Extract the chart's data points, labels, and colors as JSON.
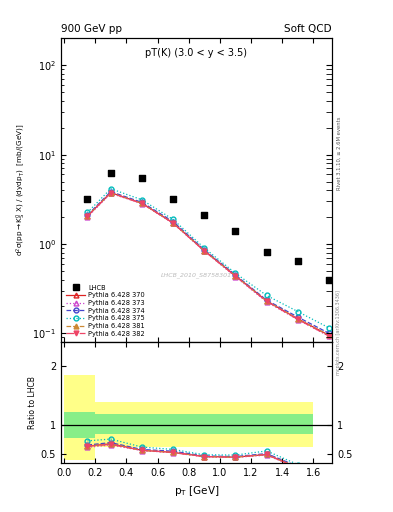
{
  "title_left": "900 GeV pp",
  "title_right": "Soft QCD",
  "panel_title": "pT(K) (3.0 < y < 3.5)",
  "ylabel_ratio": "Ratio to LHCB",
  "xlabel": "p$_{T}$ [GeV]",
  "right_label": "Rivet 3.1.10, ≥ 2.6M events",
  "watermark": "mcplots.cern.ch [arXiv:1306.3436]",
  "dataset_id": "LHCB_2010_S8758301",
  "lhcb_pt": [
    0.15,
    0.3,
    0.5,
    0.7,
    0.9,
    1.1,
    1.3,
    1.5,
    1.7
  ],
  "lhcb_y": [
    3.2,
    6.2,
    5.5,
    3.2,
    2.1,
    1.4,
    0.82,
    0.65,
    0.4
  ],
  "lhcb_color": "#000000",
  "pythia_pt": [
    0.15,
    0.3,
    0.5,
    0.7,
    0.9,
    1.1,
    1.3,
    1.5,
    1.7
  ],
  "lines": [
    {
      "label": "Pythia 6.428 370",
      "color": "#dd2222",
      "style": "-",
      "marker": "^",
      "fillstyle": "none",
      "y": [
        2.05,
        3.75,
        2.85,
        1.72,
        0.84,
        0.44,
        0.23,
        0.145,
        0.095
      ]
    },
    {
      "label": "Pythia 6.428 373",
      "color": "#cc44cc",
      "style": ":",
      "marker": "^",
      "fillstyle": "none",
      "y": [
        2.0,
        3.68,
        2.83,
        1.7,
        0.83,
        0.43,
        0.225,
        0.142,
        0.093
      ]
    },
    {
      "label": "Pythia 6.428 374",
      "color": "#4444cc",
      "style": "--",
      "marker": "o",
      "fillstyle": "none",
      "y": [
        2.1,
        3.85,
        2.92,
        1.78,
        0.86,
        0.45,
        0.235,
        0.152,
        0.1
      ]
    },
    {
      "label": "Pythia 6.428 375",
      "color": "#00bbbb",
      "style": ":",
      "marker": "o",
      "fillstyle": "none",
      "y": [
        2.25,
        4.15,
        3.12,
        1.88,
        0.9,
        0.47,
        0.265,
        0.175,
        0.115
      ]
    },
    {
      "label": "Pythia 6.428 381",
      "color": "#cc8833",
      "style": "--",
      "marker": "^",
      "fillstyle": "full",
      "y": [
        2.05,
        3.75,
        2.85,
        1.72,
        0.84,
        0.44,
        0.23,
        0.145,
        0.095
      ]
    },
    {
      "label": "Pythia 6.428 382",
      "color": "#ee4466",
      "style": "-.",
      "marker": "v",
      "fillstyle": "full",
      "y": [
        2.05,
        3.73,
        2.84,
        1.71,
        0.835,
        0.435,
        0.228,
        0.143,
        0.093
      ]
    }
  ],
  "ratio_edges": [
    0.0,
    0.2,
    0.4,
    0.6,
    0.8,
    1.0,
    1.2,
    1.6
  ],
  "ratio_band_yellow_lo": [
    0.4,
    0.62,
    0.62,
    0.62,
    0.62,
    0.62,
    0.62
  ],
  "ratio_band_yellow_hi": [
    1.85,
    1.38,
    1.38,
    1.38,
    1.38,
    1.38,
    1.38
  ],
  "ratio_band_green_lo": [
    0.78,
    0.85,
    0.85,
    0.85,
    0.85,
    0.85,
    0.85
  ],
  "ratio_band_green_hi": [
    1.22,
    1.18,
    1.18,
    1.18,
    1.18,
    1.18,
    1.18
  ],
  "ratio_pt": [
    0.15,
    0.3,
    0.5,
    0.7,
    0.9,
    1.1,
    1.3,
    1.5,
    1.7
  ],
  "ratio_lines": [
    {
      "y": [
        0.64,
        0.68,
        0.57,
        0.535,
        0.465,
        0.455,
        0.5,
        0.28,
        0.22
      ]
    },
    {
      "y": [
        0.62,
        0.66,
        0.565,
        0.53,
        0.46,
        0.45,
        0.49,
        0.27,
        0.215
      ]
    },
    {
      "y": [
        0.66,
        0.7,
        0.585,
        0.555,
        0.475,
        0.465,
        0.515,
        0.3,
        0.24
      ]
    },
    {
      "y": [
        0.73,
        0.76,
        0.625,
        0.585,
        0.495,
        0.49,
        0.56,
        0.33,
        0.27
      ]
    },
    {
      "y": [
        0.64,
        0.68,
        0.57,
        0.535,
        0.465,
        0.455,
        0.5,
        0.28,
        0.22
      ]
    },
    {
      "y": [
        0.64,
        0.67,
        0.57,
        0.535,
        0.465,
        0.455,
        0.5,
        0.27,
        0.215
      ]
    }
  ],
  "ylim_main": [
    0.08,
    200
  ],
  "ylim_ratio": [
    0.35,
    2.4
  ],
  "xlim": [
    -0.02,
    1.72
  ]
}
